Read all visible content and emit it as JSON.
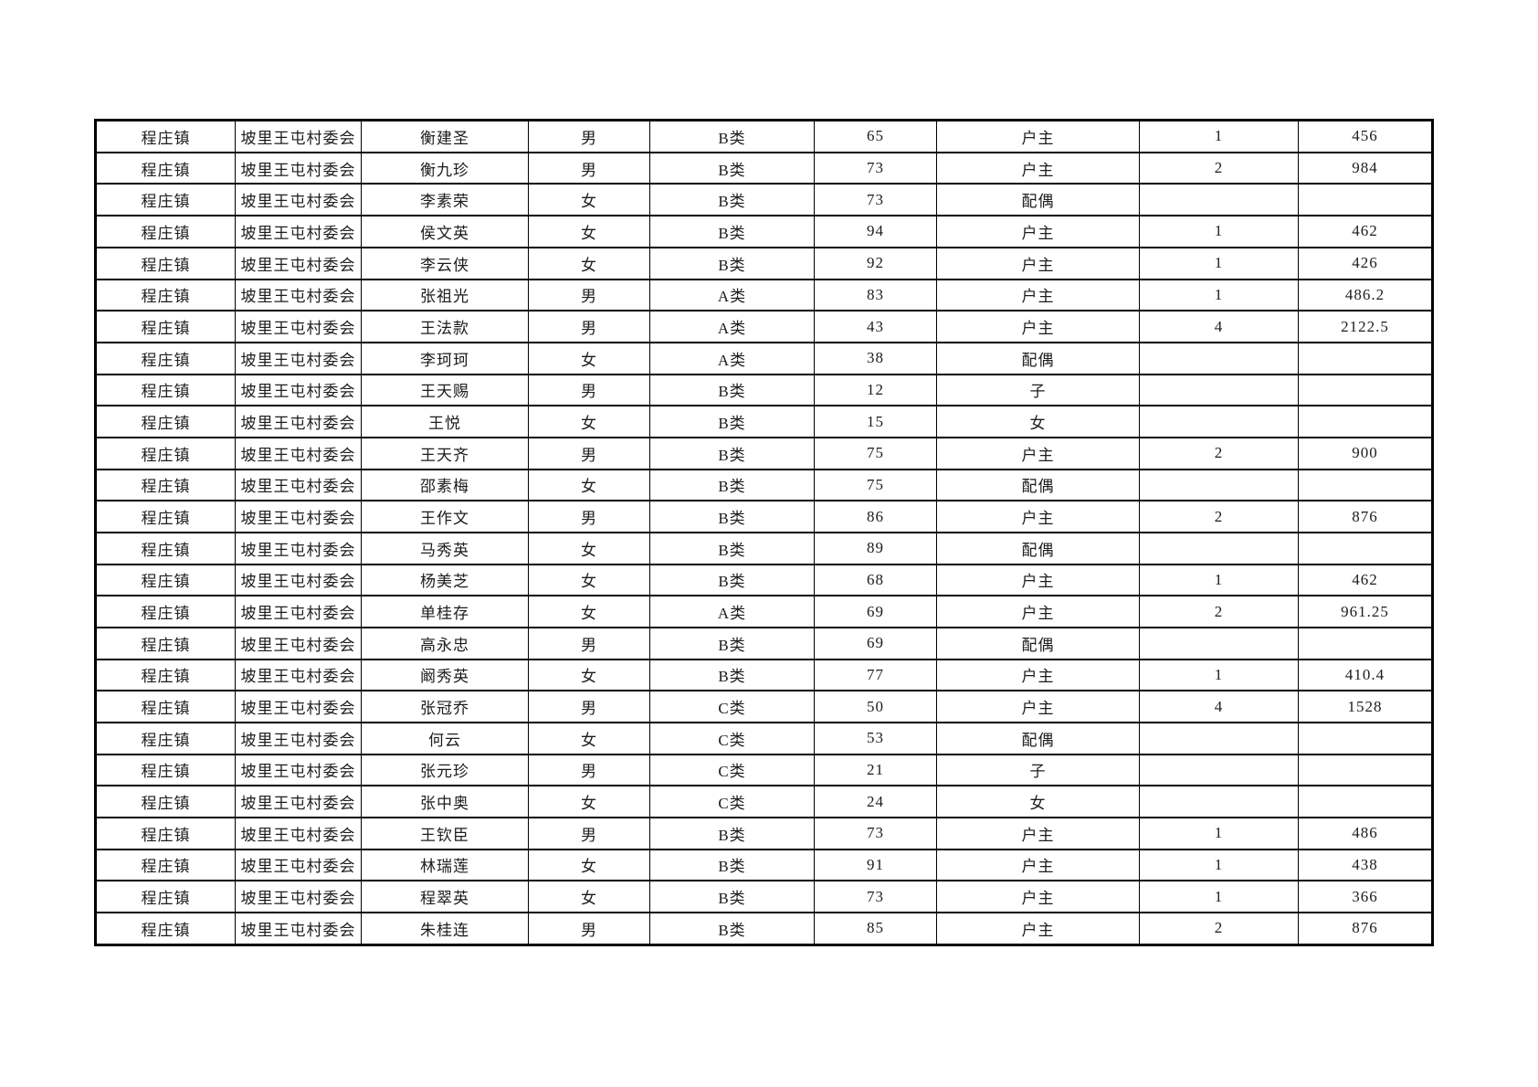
{
  "page": {
    "background_color": "#ffffff",
    "grid_color": "#000000",
    "text_color": "#1c1c1c"
  },
  "table": {
    "rows": [
      [
        "程庄镇",
        "坡里王屯村委会",
        "衡建圣",
        "男",
        "B类",
        "65",
        "户主",
        "1",
        "456"
      ],
      [
        "程庄镇",
        "坡里王屯村委会",
        "衡九珍",
        "男",
        "B类",
        "73",
        "户主",
        "2",
        "984"
      ],
      [
        "程庄镇",
        "坡里王屯村委会",
        "李素荣",
        "女",
        "B类",
        "73",
        "配偶",
        "",
        ""
      ],
      [
        "程庄镇",
        "坡里王屯村委会",
        "侯文英",
        "女",
        "B类",
        "94",
        "户主",
        "1",
        "462"
      ],
      [
        "程庄镇",
        "坡里王屯村委会",
        "李云侠",
        "女",
        "B类",
        "92",
        "户主",
        "1",
        "426"
      ],
      [
        "程庄镇",
        "坡里王屯村委会",
        "张祖光",
        "男",
        "A类",
        "83",
        "户主",
        "1",
        "486.2"
      ],
      [
        "程庄镇",
        "坡里王屯村委会",
        "王法款",
        "男",
        "A类",
        "43",
        "户主",
        "4",
        "2122.5"
      ],
      [
        "程庄镇",
        "坡里王屯村委会",
        "李珂珂",
        "女",
        "A类",
        "38",
        "配偶",
        "",
        ""
      ],
      [
        "程庄镇",
        "坡里王屯村委会",
        "王天赐",
        "男",
        "B类",
        "12",
        "子",
        "",
        ""
      ],
      [
        "程庄镇",
        "坡里王屯村委会",
        "王悦",
        "女",
        "B类",
        "15",
        "女",
        "",
        ""
      ],
      [
        "程庄镇",
        "坡里王屯村委会",
        "王天齐",
        "男",
        "B类",
        "75",
        "户主",
        "2",
        "900"
      ],
      [
        "程庄镇",
        "坡里王屯村委会",
        "邵素梅",
        "女",
        "B类",
        "75",
        "配偶",
        "",
        ""
      ],
      [
        "程庄镇",
        "坡里王屯村委会",
        "王作文",
        "男",
        "B类",
        "86",
        "户主",
        "2",
        "876"
      ],
      [
        "程庄镇",
        "坡里王屯村委会",
        "马秀英",
        "女",
        "B类",
        "89",
        "配偶",
        "",
        ""
      ],
      [
        "程庄镇",
        "坡里王屯村委会",
        "杨美芝",
        "女",
        "B类",
        "68",
        "户主",
        "1",
        "462"
      ],
      [
        "程庄镇",
        "坡里王屯村委会",
        "单桂存",
        "女",
        "A类",
        "69",
        "户主",
        "2",
        "961.25"
      ],
      [
        "程庄镇",
        "坡里王屯村委会",
        "高永忠",
        "男",
        "B类",
        "69",
        "配偶",
        "",
        ""
      ],
      [
        "程庄镇",
        "坡里王屯村委会",
        "阚秀英",
        "女",
        "B类",
        "77",
        "户主",
        "1",
        "410.4"
      ],
      [
        "程庄镇",
        "坡里王屯村委会",
        "张冠乔",
        "男",
        "C类",
        "50",
        "户主",
        "4",
        "1528"
      ],
      [
        "程庄镇",
        "坡里王屯村委会",
        "何云",
        "女",
        "C类",
        "53",
        "配偶",
        "",
        ""
      ],
      [
        "程庄镇",
        "坡里王屯村委会",
        "张元珍",
        "男",
        "C类",
        "21",
        "子",
        "",
        ""
      ],
      [
        "程庄镇",
        "坡里王屯村委会",
        "张中奥",
        "女",
        "C类",
        "24",
        "女",
        "",
        ""
      ],
      [
        "程庄镇",
        "坡里王屯村委会",
        "王钦臣",
        "男",
        "B类",
        "73",
        "户主",
        "1",
        "486"
      ],
      [
        "程庄镇",
        "坡里王屯村委会",
        "林瑞莲",
        "女",
        "B类",
        "91",
        "户主",
        "1",
        "438"
      ],
      [
        "程庄镇",
        "坡里王屯村委会",
        "程翠英",
        "女",
        "B类",
        "73",
        "户主",
        "1",
        "366"
      ],
      [
        "程庄镇",
        "坡里王屯村委会",
        "朱桂连",
        "男",
        "B类",
        "85",
        "户主",
        "2",
        "876"
      ]
    ]
  }
}
